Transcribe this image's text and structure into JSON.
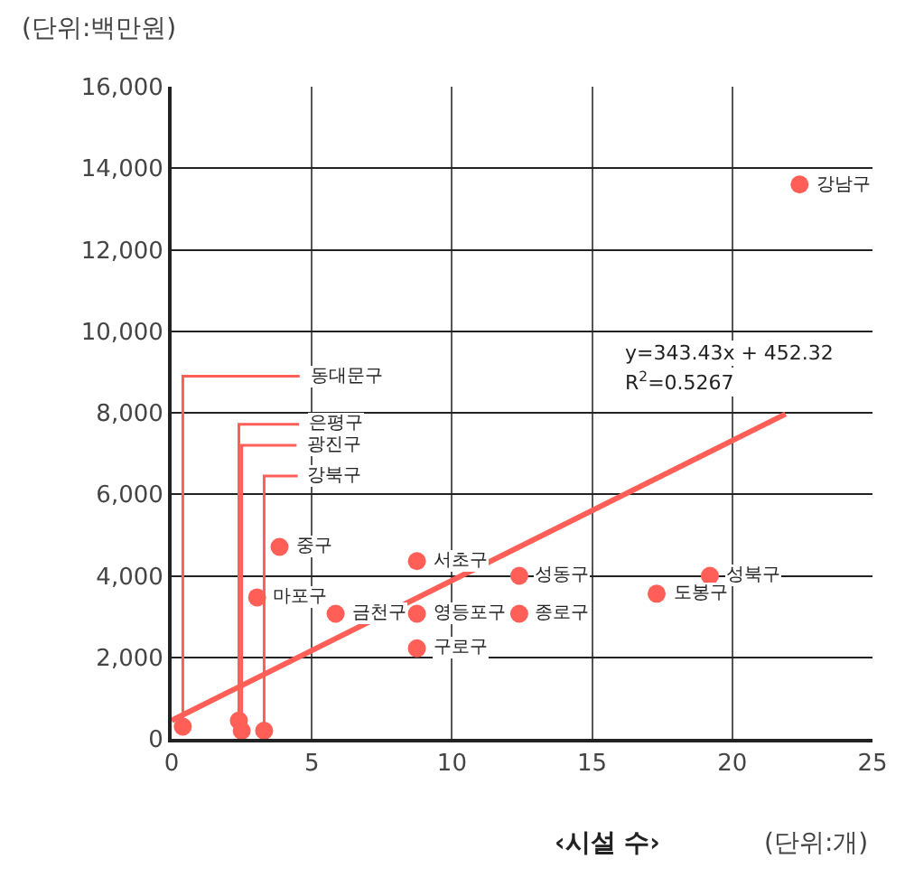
{
  "chart_data": {
    "type": "scatter",
    "xlabel": "‹시설 수›",
    "ylabel": "(단위:백만원)",
    "annotations": [
      {
        "text": "동대문구",
        "x": 0.4,
        "y": 300
      },
      {
        "text": "은평구",
        "x": 2.4,
        "y": 450
      },
      {
        "text": "광진구",
        "x": 2.5,
        "y": 200
      },
      {
        "text": "강북구",
        "x": 3.3,
        "y": 200
      },
      {
        "text": "중구",
        "x": 3.85,
        "y": 4710
      },
      {
        "text": "마포구",
        "x": 3.05,
        "y": 3470
      },
      {
        "text": "금천구",
        "x": 5.85,
        "y": 3070
      },
      {
        "text": "서초구",
        "x": 8.75,
        "y": 4360
      },
      {
        "text": "영등포구",
        "x": 8.75,
        "y": 3070
      },
      {
        "text": "구로구",
        "x": 8.75,
        "y": 2220
      },
      {
        "text": "성동구",
        "x": 12.4,
        "y": 4000
      },
      {
        "text": "종로구",
        "x": 12.4,
        "y": 3070
      },
      {
        "text": "도봉구",
        "x": 17.3,
        "y": 3560
      },
      {
        "text": "성북구",
        "x": 19.2,
        "y": 4000
      },
      {
        "text": "강남구",
        "x": 22.4,
        "y": 13600
      },
      "y=343.43x + 452.32",
      "R$^{2}$=0.5267",
      "(단위:개)"
    ],
    "series": [
      {
        "color": "#ff5f57",
        "marker": "circle",
        "x": [
          0.4,
          2.4,
          2.5,
          3.3,
          3.85,
          3.05,
          5.85,
          8.75,
          8.75,
          8.75,
          12.4,
          12.4,
          17.3,
          19.2,
          22.4
        ],
        "values": [
          300,
          450,
          200,
          200,
          4710,
          3470,
          3070,
          4360,
          3070,
          2220,
          4000,
          3070,
          3560,
          4000,
          13600
        ]
      },
      {
        "type": "line",
        "color": "#ff5f57",
        "line_style": "solid",
        "x": [
          0,
          21.9
        ],
        "values": [
          450,
          7970
        ]
      }
    ],
    "xlim": [
      0,
      25
    ],
    "xticks": [
      0,
      5,
      10,
      15,
      20,
      25
    ],
    "ylim": [
      0,
      16000
    ],
    "yticks": [
      0,
      {
        "value": 2000,
        "label": "2,000"
      },
      {
        "value": 4000,
        "label": "4,000"
      },
      {
        "value": 6000,
        "label": "6,000"
      },
      {
        "value": 8000,
        "label": "8,000"
      },
      {
        "value": 10000,
        "label": "10,000"
      },
      {
        "value": 12000,
        "label": "12,000"
      },
      {
        "value": 14000,
        "label": "14,000"
      },
      {
        "value": 16000,
        "label": "16,000"
      }
    ],
    "grid": true
  }
}
